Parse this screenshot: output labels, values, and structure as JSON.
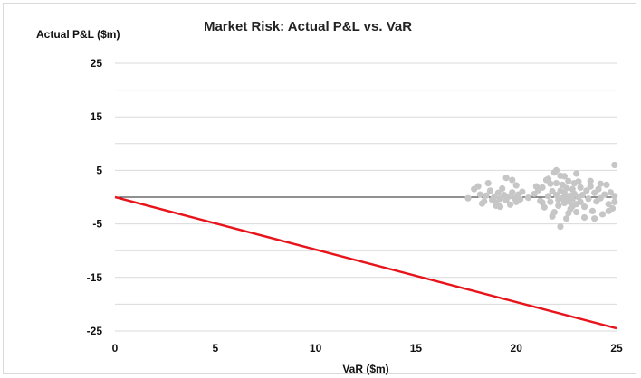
{
  "chart_data": {
    "type": "scatter",
    "title": "Market Risk: Actual P&L vs. VaR",
    "xlabel": "VaR ($m)",
    "ylabel": "Actual P&L ($m)",
    "xlim": [
      0,
      25
    ],
    "ylim": [
      -25,
      25
    ],
    "x_ticks": [
      "0",
      "5",
      "10",
      "15",
      "20",
      "25"
    ],
    "y_ticks": [
      "25",
      "15",
      "5",
      "-5",
      "-15",
      "-25"
    ],
    "grid": "horizontal",
    "colors": {
      "points": "#c6c6c6",
      "line": "#e8141b",
      "zero_line": "#222222",
      "grid": "#d9d9d9"
    },
    "lines": [
      {
        "name": "",
        "x": [
          0,
          25
        ],
        "y": [
          0,
          -24.5
        ]
      }
    ],
    "series": [
      {
        "name": "",
        "points": [
          [
            17.6,
            -0.2
          ],
          [
            17.9,
            1.5
          ],
          [
            18.1,
            2.0
          ],
          [
            18.2,
            0.5
          ],
          [
            18.4,
            -0.8
          ],
          [
            18.5,
            0.3
          ],
          [
            18.7,
            1.2
          ],
          [
            18.8,
            -0.5
          ],
          [
            18.9,
            0.0
          ],
          [
            19.0,
            -1.0
          ],
          [
            19.1,
            0.8
          ],
          [
            19.2,
            -0.3
          ],
          [
            19.3,
            1.6
          ],
          [
            19.4,
            0.4
          ],
          [
            19.5,
            -0.6
          ],
          [
            19.5,
            3.6
          ],
          [
            19.6,
            0.1
          ],
          [
            19.7,
            -1.4
          ],
          [
            19.8,
            0.9
          ],
          [
            19.9,
            -0.2
          ],
          [
            20.0,
            2.2
          ],
          [
            20.0,
            -0.9
          ],
          [
            20.1,
            0.5
          ],
          [
            20.2,
            -0.4
          ],
          [
            19.2,
            -1.8
          ],
          [
            18.6,
            2.6
          ],
          [
            19.8,
            3.2
          ],
          [
            20.3,
            1.0
          ],
          [
            19.0,
            -1.6
          ],
          [
            18.3,
            -1.2
          ],
          [
            20.6,
            -0.1
          ],
          [
            20.9,
            0.6
          ],
          [
            21.0,
            2.0
          ],
          [
            21.2,
            -0.7
          ],
          [
            21.3,
            1.8
          ],
          [
            21.4,
            -1.9
          ],
          [
            21.5,
            3.2
          ],
          [
            21.6,
            0.2
          ],
          [
            21.7,
            -0.9
          ],
          [
            21.8,
            1.1
          ],
          [
            21.9,
            4.6
          ],
          [
            21.9,
            -2.8
          ],
          [
            22.0,
            0.4
          ],
          [
            22.0,
            2.6
          ],
          [
            22.1,
            -0.5
          ],
          [
            22.1,
            -1.6
          ],
          [
            22.2,
            1.2
          ],
          [
            22.2,
            4.0
          ],
          [
            22.3,
            -0.2
          ],
          [
            22.3,
            2.3
          ],
          [
            22.4,
            0.8
          ],
          [
            22.4,
            -1.1
          ],
          [
            22.5,
            -4.0
          ],
          [
            22.5,
            1.7
          ],
          [
            22.6,
            -0.8
          ],
          [
            22.6,
            3.0
          ],
          [
            22.7,
            0.3
          ],
          [
            22.7,
            -2.2
          ],
          [
            22.8,
            1.5
          ],
          [
            22.8,
            -0.4
          ],
          [
            22.9,
            0.6
          ],
          [
            22.9,
            2.6
          ],
          [
            23.0,
            -1.3
          ],
          [
            23.0,
            4.4
          ],
          [
            23.1,
            0.0
          ],
          [
            23.2,
            -0.9
          ],
          [
            23.2,
            1.8
          ],
          [
            22.0,
            5.0
          ],
          [
            22.2,
            -5.5
          ],
          [
            21.8,
            -3.6
          ],
          [
            22.6,
            -3.0
          ],
          [
            23.0,
            -2.8
          ],
          [
            21.6,
            3.4
          ],
          [
            22.4,
            3.9
          ],
          [
            23.1,
            2.9
          ],
          [
            21.1,
            1.3
          ],
          [
            21.3,
            -1.0
          ],
          [
            21.7,
            2.5
          ],
          [
            22.8,
            -1.7
          ],
          [
            22.5,
            0.0
          ],
          [
            23.3,
            0.4
          ],
          [
            23.4,
            -1.8
          ],
          [
            23.5,
            1.2
          ],
          [
            23.6,
            -0.3
          ],
          [
            23.7,
            2.0
          ],
          [
            23.8,
            -2.6
          ],
          [
            23.9,
            0.8
          ],
          [
            24.0,
            -0.8
          ],
          [
            24.1,
            1.5
          ],
          [
            24.2,
            -0.2
          ],
          [
            24.3,
            -3.2
          ],
          [
            24.4,
            0.5
          ],
          [
            24.5,
            2.3
          ],
          [
            24.6,
            -1.3
          ],
          [
            24.7,
            0.9
          ],
          [
            24.8,
            -2.1
          ],
          [
            24.9,
            0.2
          ],
          [
            24.9,
            -0.9
          ],
          [
            24.9,
            6.0
          ],
          [
            24.2,
            2.5
          ],
          [
            23.9,
            -4.0
          ],
          [
            23.4,
            -3.8
          ],
          [
            24.6,
            -2.6
          ],
          [
            23.7,
            3.0
          ]
        ]
      }
    ]
  }
}
